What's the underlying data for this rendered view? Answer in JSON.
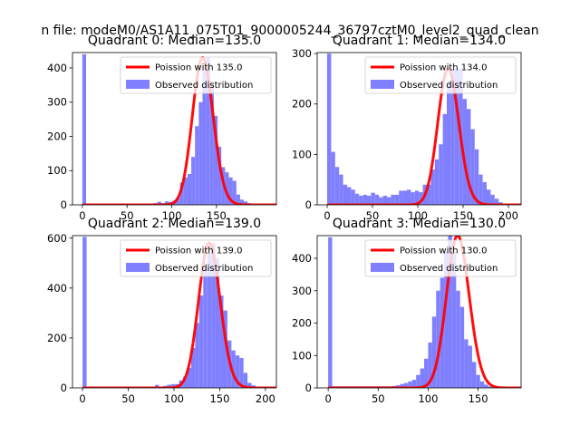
{
  "suptitle": "n file: modeM0/AS1A11_075T01_9000005244_36797cztM0_level2_quad_clean",
  "colors": {
    "hist": "#8080ff",
    "fit": "#ff0000",
    "axes": "#000000",
    "background": "#ffffff"
  },
  "chart_data": [
    {
      "type": "bar",
      "title": "Quadrant 0: Median=135.0",
      "xlim": [
        -11,
        217
      ],
      "ylim": [
        0,
        445
      ],
      "xticks": [
        0,
        50,
        100,
        150
      ],
      "xtick_labels": [
        "0",
        "50",
        "100",
        "150"
      ],
      "yticks": [
        0,
        100,
        200,
        300,
        400
      ],
      "ytick_labels": [
        "0",
        "100",
        "200",
        "300",
        "400"
      ],
      "legend": {
        "position": "upper right",
        "fit_label": "Poission with 135.0",
        "hist_label": "Observed distribution"
      },
      "fit": {
        "mu": 135.0,
        "scale": 1.0
      },
      "hist": {
        "bin_start": 0,
        "bin_width": 4.2,
        "counts": [
          440,
          3,
          3,
          3,
          3,
          3,
          3,
          3,
          3,
          3,
          3,
          3,
          3,
          3,
          3,
          3,
          3,
          3,
          4,
          5,
          9,
          5,
          10,
          8,
          12,
          20,
          65,
          80,
          90,
          140,
          230,
          300,
          400,
          430,
          360,
          260,
          170,
          110,
          95,
          80,
          70,
          30,
          15,
          10,
          5,
          2
        ]
      }
    },
    {
      "type": "bar",
      "title": "Quadrant 1: Median=134.0",
      "xlim": [
        -11,
        214
      ],
      "ylim": [
        0,
        302
      ],
      "xticks": [
        0,
        50,
        100,
        150,
        200
      ],
      "xtick_labels": [
        "0",
        "50",
        "100",
        "150",
        "200"
      ],
      "yticks": [
        0,
        100,
        200,
        300
      ],
      "ytick_labels": [
        "0",
        "100",
        "200",
        "300"
      ],
      "legend": {
        "position": "upper right",
        "fit_label": "Poission with 134.0",
        "hist_label": "Observed distribution"
      },
      "fit": {
        "mu": 134.0,
        "scale": 1.0
      },
      "hist": {
        "bin_start": 0,
        "bin_width": 4.4,
        "counts": [
          300,
          105,
          75,
          60,
          40,
          35,
          30,
          22,
          18,
          20,
          18,
          24,
          20,
          15,
          18,
          15,
          20,
          20,
          28,
          28,
          30,
          25,
          28,
          25,
          40,
          40,
          70,
          90,
          120,
          180,
          245,
          270,
          270,
          270,
          210,
          190,
          150,
          110,
          60,
          45,
          30,
          20,
          12,
          5,
          2,
          1
        ]
      }
    },
    {
      "type": "bar",
      "title": "Quadrant 2: Median=139.0",
      "xlim": [
        -11,
        212
      ],
      "ylim": [
        0,
        610
      ],
      "xticks": [
        0,
        50,
        100,
        150,
        200
      ],
      "xtick_labels": [
        "0",
        "50",
        "100",
        "150",
        "200"
      ],
      "yticks": [
        0,
        200,
        400,
        600
      ],
      "ytick_labels": [
        "0",
        "200",
        "400",
        "600"
      ],
      "legend": {
        "position": "upper right",
        "fit_label": "Poission with 139.0",
        "hist_label": "Observed distribution"
      },
      "fit": {
        "mu": 139.0,
        "scale": 1.0
      },
      "hist": {
        "bin_start": 0,
        "bin_width": 4.4,
        "counts": [
          605,
          3,
          3,
          3,
          3,
          3,
          3,
          3,
          3,
          3,
          3,
          3,
          3,
          3,
          3,
          3,
          3,
          3,
          12,
          5,
          8,
          12,
          15,
          15,
          30,
          45,
          80,
          160,
          260,
          370,
          480,
          540,
          580,
          520,
          370,
          310,
          190,
          150,
          130,
          120,
          60,
          20,
          10,
          5,
          2
        ]
      }
    },
    {
      "type": "bar",
      "title": "Quadrant 3: Median=130.0",
      "xlim": [
        -11,
        193
      ],
      "ylim": [
        0,
        470
      ],
      "xticks": [
        0,
        50,
        100,
        150
      ],
      "xtick_labels": [
        "0",
        "50",
        "100",
        "150"
      ],
      "yticks": [
        0,
        100,
        200,
        300,
        400
      ],
      "ytick_labels": [
        "0",
        "100",
        "200",
        "300",
        "400"
      ],
      "legend": {
        "position": "upper right",
        "fit_label": "Poission with 130.0",
        "hist_label": "Observed distribution"
      },
      "fit": {
        "mu": 130.0,
        "scale": 1.0
      },
      "hist": {
        "bin_start": 0,
        "bin_width": 4.0,
        "counts": [
          465,
          5,
          5,
          5,
          5,
          5,
          5,
          5,
          5,
          5,
          5,
          5,
          5,
          5,
          5,
          5,
          6,
          8,
          12,
          15,
          20,
          25,
          40,
          60,
          90,
          140,
          220,
          300,
          340,
          420,
          470,
          420,
          300,
          250,
          150,
          130,
          80,
          40,
          20,
          10,
          5,
          3,
          1
        ]
      }
    }
  ]
}
